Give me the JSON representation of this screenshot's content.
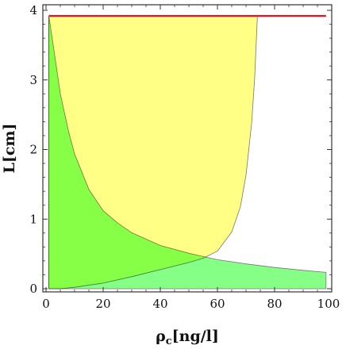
{
  "chart_data": {
    "type": "area",
    "xlabel": "ρ_c[ng/l]",
    "xlabel_main": "ρ",
    "xlabel_sub": "c",
    "xlabel_unit": "[ng/l]",
    "ylabel": "L[cm]",
    "xlim": [
      0,
      100
    ],
    "ylim": [
      0,
      4
    ],
    "x_ticks": [
      0,
      20,
      40,
      60,
      80,
      100
    ],
    "y_ticks": [
      0,
      1,
      2,
      3,
      4
    ],
    "grid": false,
    "legend": "none",
    "series": [
      {
        "kind": "line",
        "color": "#e8141b",
        "x": [
          1,
          98
        ],
        "y": [
          3.9,
          3.9
        ]
      },
      {
        "kind": "area",
        "color": "#ffff80",
        "x": [
          1,
          5,
          10,
          20,
          30,
          40,
          50,
          55,
          60,
          65,
          68,
          70,
          72,
          73,
          74
        ],
        "y_lower": [
          0.05,
          0.05,
          0.07,
          0.13,
          0.22,
          0.32,
          0.42,
          0.48,
          0.58,
          0.85,
          1.2,
          1.65,
          2.4,
          3.0,
          3.9
        ],
        "y_upper": [
          3.9,
          3.9,
          3.9,
          3.9,
          3.9,
          3.9,
          3.9,
          3.9,
          3.9,
          3.9,
          3.9,
          3.9,
          3.9,
          3.9,
          3.9
        ]
      },
      {
        "kind": "area",
        "color": "#80ff80",
        "x": [
          1,
          3,
          5,
          8,
          10,
          15,
          20,
          25,
          30,
          40,
          50,
          60,
          70,
          80,
          90,
          98
        ],
        "y_lower": [
          0.05,
          0.05,
          0.05,
          0.05,
          0.05,
          0.05,
          0.05,
          0.05,
          0.05,
          0.05,
          0.05,
          0.05,
          0.05,
          0.05,
          0.05,
          0.05
        ],
        "y_upper": [
          3.9,
          3.35,
          2.8,
          2.25,
          1.95,
          1.45,
          1.15,
          0.98,
          0.84,
          0.66,
          0.55,
          0.46,
          0.4,
          0.35,
          0.31,
          0.28
        ]
      }
    ]
  }
}
